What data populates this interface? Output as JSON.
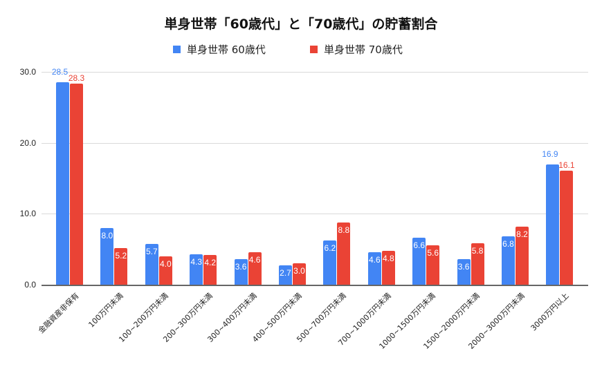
{
  "chart_data": {
    "type": "bar",
    "title": "単身世帯「60歳代」と「70歳代」の貯蓄割合",
    "xlabel": "",
    "ylabel": "",
    "ylim": [
      0,
      30
    ],
    "yticks": [
      "0.0",
      "10.0",
      "20.0",
      "30.0"
    ],
    "grid": true,
    "legend_position": "top",
    "categories": [
      "金融資産非保有",
      "100万円未満",
      "100~200万円未満",
      "200~300万円未満",
      "300~400万円未満",
      "400~500万円未満",
      "500~700万円未満",
      "700~1000万円未満",
      "1000~1500万円未満",
      "1500~2000万円未満",
      "2000~3000万円未満",
      "3000万円以上"
    ],
    "series": [
      {
        "name": "単身世帯 60歳代",
        "color": "#4285f4",
        "values": [
          28.5,
          8.0,
          5.7,
          4.3,
          3.6,
          2.7,
          6.2,
          4.6,
          6.6,
          3.6,
          6.8,
          16.9
        ],
        "labels": [
          "28.5",
          "8.0",
          "5.7",
          "4.3",
          "3.6",
          "2.7",
          "6.2",
          "4.6",
          "6.6",
          "3.6",
          "6.8",
          "16.9"
        ]
      },
      {
        "name": "単身世帯 70歳代",
        "color": "#ea4335",
        "values": [
          28.3,
          5.2,
          4.0,
          4.2,
          4.6,
          3.0,
          8.8,
          4.8,
          5.6,
          5.8,
          8.2,
          16.1
        ],
        "labels": [
          "28.3",
          "5.2",
          "4.0",
          "4.2",
          "4.6",
          "3.0",
          "8.8",
          "4.8",
          "5.6",
          "5.8",
          "8.2",
          "16.1"
        ]
      }
    ]
  }
}
